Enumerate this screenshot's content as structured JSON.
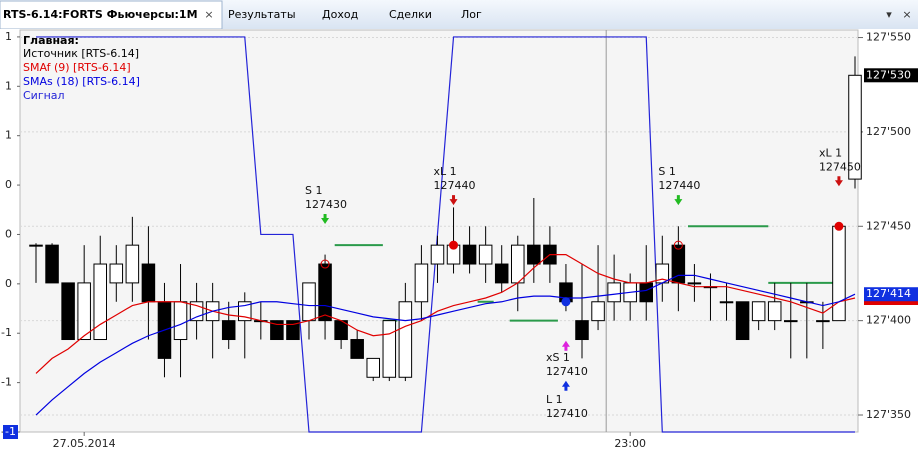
{
  "window_title": "RTS-6.14:FORTS Фьючерсы:1M",
  "tabs": [
    "Результаты",
    "Доход",
    "Сделки",
    "Лог"
  ],
  "chart_data": {
    "type": "candlestick",
    "legend_title": "Главная:",
    "candles": {
      "name": "Источник [RTS-6.14]",
      "color": "#000000",
      "open": [
        127440,
        127440,
        127420,
        127390,
        127390,
        127420,
        127420,
        127430,
        127410,
        127390,
        127400,
        127400,
        127400,
        127400,
        127400,
        127400,
        127400,
        127400,
        127430,
        127400,
        127390,
        127370,
        127370,
        127370,
        127410,
        127430,
        127430,
        127440,
        127430,
        127430,
        127420,
        127440,
        127440,
        127420,
        127400,
        127400,
        127410,
        127410,
        127420,
        127420,
        127440,
        127420,
        127418,
        127410,
        127410,
        127400,
        127400,
        127400,
        127410,
        127400,
        127400,
        127475
      ],
      "high": [
        127441,
        127441,
        127420,
        127440,
        127445,
        127440,
        127455,
        127450,
        127420,
        127430,
        127420,
        127420,
        127410,
        127415,
        127410,
        127400,
        127400,
        127420,
        127435,
        127400,
        127395,
        127380,
        127400,
        127420,
        127440,
        127445,
        127460,
        127450,
        127450,
        127440,
        127445,
        127465,
        127450,
        127430,
        127430,
        127440,
        127435,
        127425,
        127440,
        127445,
        127450,
        127430,
        127425,
        127420,
        127410,
        127410,
        127420,
        127420,
        127420,
        127410,
        127450,
        127540
      ],
      "low": [
        127420,
        127420,
        127390,
        127390,
        127390,
        127410,
        127410,
        127390,
        127370,
        127370,
        127390,
        127380,
        127385,
        127380,
        127390,
        127390,
        127390,
        127390,
        127390,
        127385,
        127380,
        127368,
        127368,
        127368,
        127400,
        127420,
        127425,
        127425,
        127420,
        127415,
        127405,
        127420,
        127420,
        127405,
        127380,
        127395,
        127400,
        127400,
        127400,
        127410,
        127405,
        127410,
        127400,
        127400,
        127390,
        127395,
        127395,
        127380,
        127380,
        127385,
        127400,
        127470
      ],
      "close": [
        127440,
        127420,
        127390,
        127420,
        127430,
        127430,
        127440,
        127410,
        127380,
        127410,
        127410,
        127410,
        127390,
        127410,
        127400,
        127390,
        127390,
        127420,
        127400,
        127390,
        127380,
        127380,
        127400,
        127410,
        127430,
        127440,
        127440,
        127430,
        127440,
        127420,
        127440,
        127430,
        127430,
        127410,
        127390,
        127410,
        127420,
        127420,
        127410,
        127430,
        127420,
        127420,
        127418,
        127410,
        127390,
        127410,
        127410,
        127400,
        127410,
        127400,
        127450,
        127530
      ]
    },
    "series": [
      {
        "name": "SMAf (9) [RTS-6.14]",
        "color": "#e00000",
        "values": [
          127372,
          127380,
          127385,
          127392,
          127398,
          127403,
          127408,
          127410,
          127410,
          127410,
          127408,
          127405,
          127403,
          127402,
          127400,
          127398,
          127398,
          127400,
          127403,
          127400,
          127395,
          127392,
          127393,
          127397,
          127400,
          127405,
          127408,
          127410,
          127412,
          127415,
          127420,
          127428,
          127435,
          127435,
          127430,
          127425,
          127422,
          127420,
          127420,
          127422,
          127420,
          127418,
          127418,
          127418,
          127416,
          127414,
          127412,
          127410,
          127407,
          127404,
          127410,
          127412
        ]
      },
      {
        "name": "SMAs (18) [RTS-6.14]",
        "color": "#0000e0",
        "values": [
          127350,
          127358,
          127365,
          127372,
          127378,
          127383,
          127388,
          127392,
          127395,
          127398,
          127402,
          127405,
          127407,
          127408,
          127410,
          127410,
          127409,
          127408,
          127408,
          127406,
          127404,
          127402,
          127401,
          127400,
          127401,
          127403,
          127405,
          127407,
          127409,
          127410,
          127412,
          127413,
          127413,
          127412,
          127412,
          127413,
          127414,
          127415,
          127416,
          127420,
          127424,
          127424,
          127422,
          127420,
          127418,
          127416,
          127414,
          127412,
          127410,
          127408,
          127410,
          127414
        ]
      },
      {
        "name": "Сигнал",
        "color": "#2424d8",
        "axis": "y2",
        "values": [
          1,
          1,
          1,
          1,
          1,
          1,
          1,
          1,
          1,
          1,
          1,
          1,
          1,
          1,
          0,
          0,
          0,
          -1,
          -1,
          -1,
          -1,
          -1,
          -1,
          -1,
          -1,
          0,
          1,
          1,
          1,
          1,
          1,
          1,
          1,
          1,
          1,
          1,
          1,
          1,
          1,
          -1,
          -1,
          -1,
          -1,
          -1,
          -1,
          -1,
          -1,
          -1,
          -1,
          -1,
          -1,
          -1
        ]
      }
    ],
    "ylim": [
      127341,
      127554
    ],
    "yticks": [
      {
        "value": 127350,
        "label": "127'350"
      },
      {
        "value": 127400,
        "label": "127'400"
      },
      {
        "value": 127450,
        "label": "127'450"
      },
      {
        "value": 127500,
        "label": "127'500"
      },
      {
        "value": 127550,
        "label": "127'550"
      }
    ],
    "y2lim": [
      -1,
      1.035
    ],
    "y2ticks": [
      {
        "value": 1,
        "label": "1"
      },
      {
        "value": 0.75,
        "label": "1"
      },
      {
        "value": 0.5,
        "label": "1"
      },
      {
        "value": 0.25,
        "label": "0"
      },
      {
        "value": 0,
        "label": "0"
      },
      {
        "value": -0.25,
        "label": "0"
      },
      {
        "value": -0.5,
        "label": "-1"
      },
      {
        "value": -0.75,
        "label": "-1"
      },
      {
        "value": -1,
        "label": "-1"
      }
    ],
    "price_markers": [
      {
        "value": 127412,
        "label": "127'412",
        "color": "#e00000"
      },
      {
        "value": 127414,
        "label": "127'414",
        "color": "#1030e0"
      },
      {
        "value": 127530,
        "label": "127'530",
        "color": "#000000"
      }
    ],
    "signal_marker": {
      "value": -1,
      "label": "-1",
      "color": "#1030e0"
    },
    "annotations": [
      {
        "index": 18,
        "label": "S 1",
        "value": 127430,
        "position": "above",
        "color": "#22bb22",
        "dot": "#e00000",
        "hollow": true
      },
      {
        "index": 26,
        "label": "xL 1",
        "value": 127440,
        "position": "above",
        "color": "#cc1111",
        "dot": "#e00000",
        "hollow": false
      },
      {
        "index": 33,
        "label": "xS 1",
        "value": 127410,
        "position": "below",
        "color": "#dd22dd",
        "dot": "#1030e0",
        "hollow": false
      },
      {
        "index": 33,
        "label": "L 1",
        "value": 127410,
        "position": "below2",
        "color": "#1030e0",
        "dot": null,
        "hollow": false
      },
      {
        "index": 40,
        "label": "S 1",
        "value": 127440,
        "position": "above",
        "color": "#22bb22",
        "dot": "#e00000",
        "hollow": true
      },
      {
        "index": 50,
        "label": "xL 1",
        "value": 127450,
        "position": "above",
        "color": "#cc1111",
        "dot": "#e00000",
        "hollow": false
      }
    ],
    "levels": {
      "color": "#2a9a4a",
      "items": [
        {
          "start": 18.6,
          "end": 21.6,
          "value": 127440
        },
        {
          "start": 21.6,
          "end": 22.5,
          "value": 127400
        },
        {
          "start": 27.5,
          "end": 28.5,
          "value": 127410
        },
        {
          "start": 29.5,
          "end": 32.5,
          "value": 127400
        },
        {
          "start": 40.6,
          "end": 45.6,
          "value": 127450
        },
        {
          "start": 45.6,
          "end": 49.6,
          "value": 127420
        }
      ]
    },
    "time_labels": [
      {
        "index": 3,
        "label": "27.05.2014"
      },
      {
        "index": 37,
        "label": "23:00"
      }
    ],
    "grid": true
  }
}
